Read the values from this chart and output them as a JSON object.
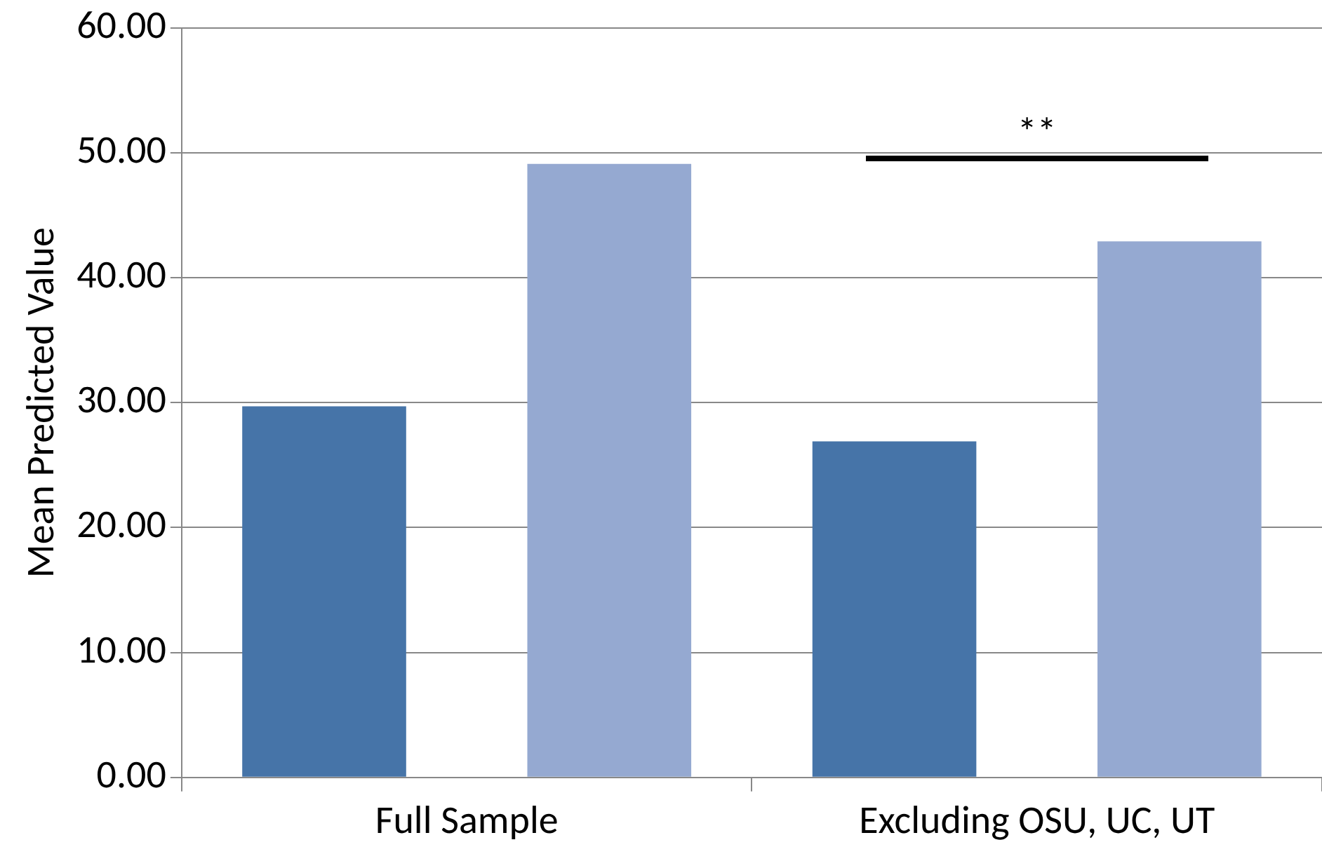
{
  "chart_data": {
    "type": "bar",
    "ylabel": "Mean Predicted Value",
    "categories": [
      "Full Sample",
      "Excluding OSU, UC, UT"
    ],
    "series": [
      {
        "color": "#4674a8",
        "values": [
          29.7,
          26.9
        ]
      },
      {
        "color": "#95a9d1",
        "values": [
          49.1,
          42.9
        ]
      }
    ],
    "ylim": [
      0,
      60
    ],
    "yticks": [
      {
        "value": 0,
        "label": "0.00"
      },
      {
        "value": 10,
        "label": "10.00"
      },
      {
        "value": 20,
        "label": "20.00"
      },
      {
        "value": 30,
        "label": "30.00"
      },
      {
        "value": 40,
        "label": "40.00"
      },
      {
        "value": 50,
        "label": "50.00"
      },
      {
        "value": 60,
        "label": "60.00"
      }
    ],
    "grid": "y",
    "legend": false,
    "annotations": [
      "**"
    ]
  }
}
